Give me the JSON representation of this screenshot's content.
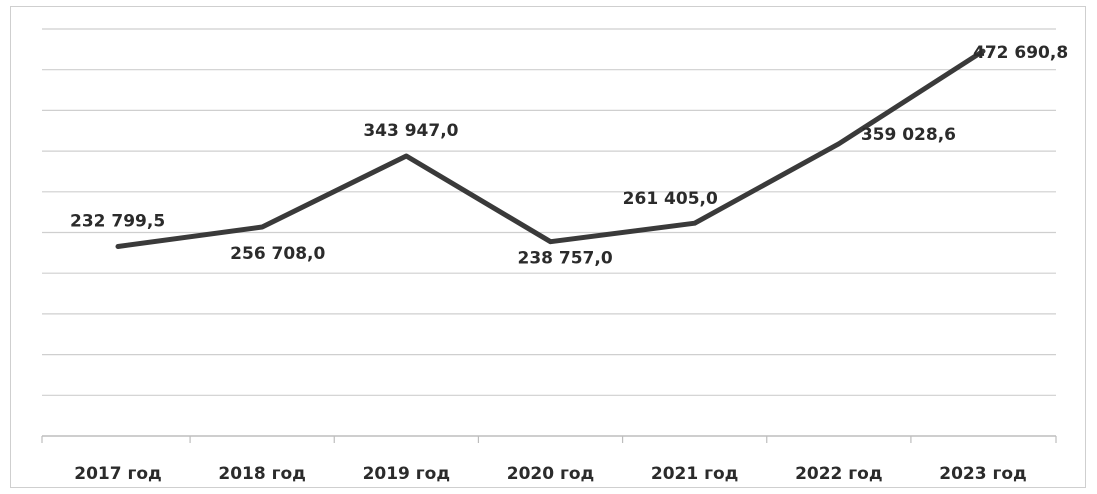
{
  "chart_data": {
    "type": "line",
    "title": "",
    "xlabel": "",
    "ylabel": "",
    "categories": [
      "2017 год",
      "2018 год",
      "2019 год",
      "2020 год",
      "2021 год",
      "2022 год",
      "2023 год"
    ],
    "series": [
      {
        "values": [
          232799.5,
          256708.0,
          343947.0,
          238757.0,
          261405.0,
          359028.6,
          472690.8
        ],
        "labels": [
          "232 799,5",
          "256 708,0",
          "343 947,0",
          "238 757,0",
          "261 405,0",
          "359 028,6",
          "472 690,8"
        ],
        "color": "#3a3a3a"
      }
    ],
    "ylim": [
      0,
      500000
    ],
    "y_gridline_step": 50000,
    "y_tick_labels_shown": false,
    "grid": true,
    "legend": "none"
  }
}
